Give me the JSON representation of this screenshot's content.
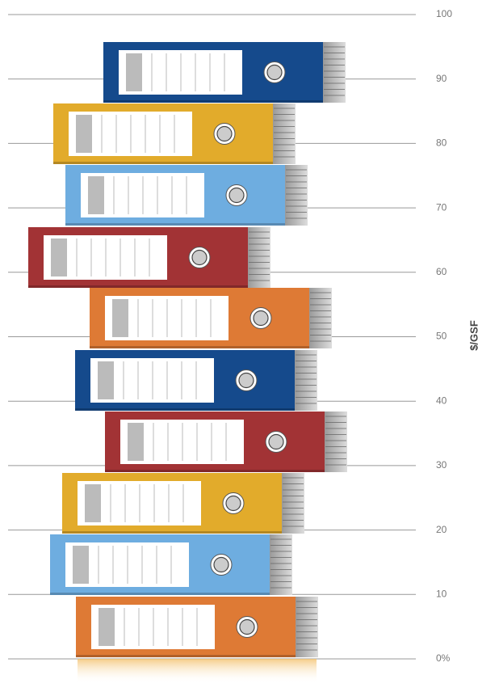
{
  "chart_data": {
    "type": "binders",
    "y_axis_label": "$/GSF",
    "ylim": [
      0,
      100
    ],
    "yticks": [
      {
        "value": 0,
        "label": "0%"
      },
      10,
      20,
      30,
      40,
      50,
      60,
      70,
      80,
      90,
      100
    ],
    "grid": true
  }
}
